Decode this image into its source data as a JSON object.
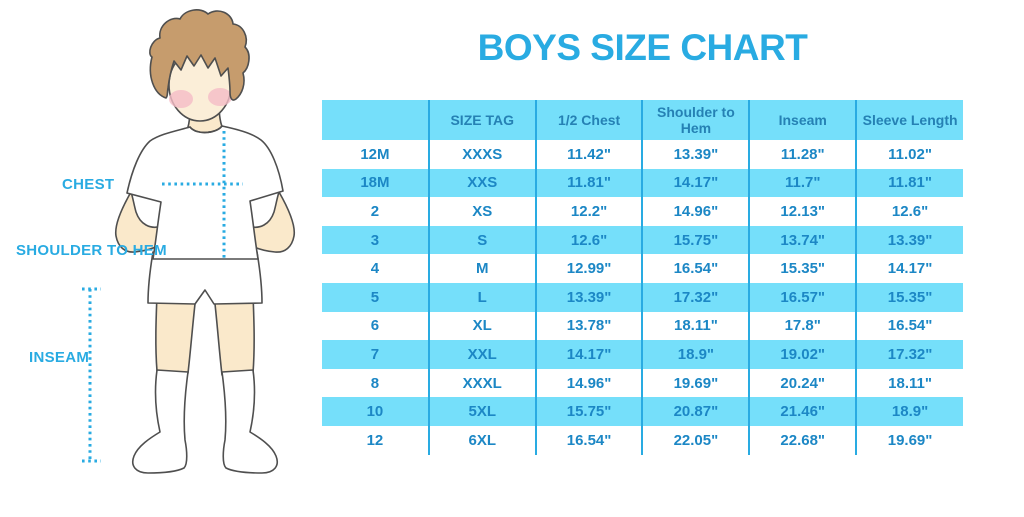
{
  "title": "BOYS SIZE CHART",
  "colors": {
    "accent_blue": "#29ABE2",
    "stripe_light_blue": "#75DFFA",
    "grid_line_blue": "#29ABE2",
    "table_body_text": "#1C87C5",
    "table_header_text": "#2581B4",
    "skin": "#FAE9CB",
    "hair": "#C69C6D",
    "blush": "#F6BDC7",
    "outline": "#4F4F4F"
  },
  "figure": {
    "description": "Line-art illustration of a boy in a white t-shirt, shorts and knee socks with dotted measurement guides",
    "labels": {
      "chest": "CHEST",
      "shoulder_to_hem": "SHOULDER TO HEM",
      "inseam": "INSEAM"
    }
  },
  "chart_data": {
    "type": "table",
    "title": "BOYS SIZE CHART",
    "columns": [
      "",
      "SIZE TAG",
      "1/2 Chest",
      "Shoulder to Hem",
      "Inseam",
      "Sleeve Length"
    ],
    "rows": [
      [
        "12M",
        "XXXS",
        "11.42\"",
        "13.39\"",
        "11.28\"",
        "11.02\""
      ],
      [
        "18M",
        "XXS",
        "11.81\"",
        "14.17\"",
        "11.7\"",
        "11.81\""
      ],
      [
        "2",
        "XS",
        "12.2\"",
        "14.96\"",
        "12.13\"",
        "12.6\""
      ],
      [
        "3",
        "S",
        "12.6\"",
        "15.75\"",
        "13.74\"",
        "13.39\""
      ],
      [
        "4",
        "M",
        "12.99\"",
        "16.54\"",
        "15.35\"",
        "14.17\""
      ],
      [
        "5",
        "L",
        "13.39\"",
        "17.32\"",
        "16.57\"",
        "15.35\""
      ],
      [
        "6",
        "XL",
        "13.78\"",
        "18.11\"",
        "17.8\"",
        "16.54\""
      ],
      [
        "7",
        "XXL",
        "14.17\"",
        "18.9\"",
        "19.02\"",
        "17.32\""
      ],
      [
        "8",
        "XXXL",
        "14.96\"",
        "19.69\"",
        "20.24\"",
        "18.11\""
      ],
      [
        "10",
        "5XL",
        "15.75\"",
        "20.87\"",
        "21.46\"",
        "18.9\""
      ],
      [
        "12",
        "6XL",
        "16.54\"",
        "22.05\"",
        "22.68\"",
        "19.69\""
      ]
    ],
    "layout": {
      "striping": "rows alternate white and light blue starting with white",
      "grid": "vertical column separators only, no outer border",
      "header_background": "#75DFFA"
    }
  }
}
